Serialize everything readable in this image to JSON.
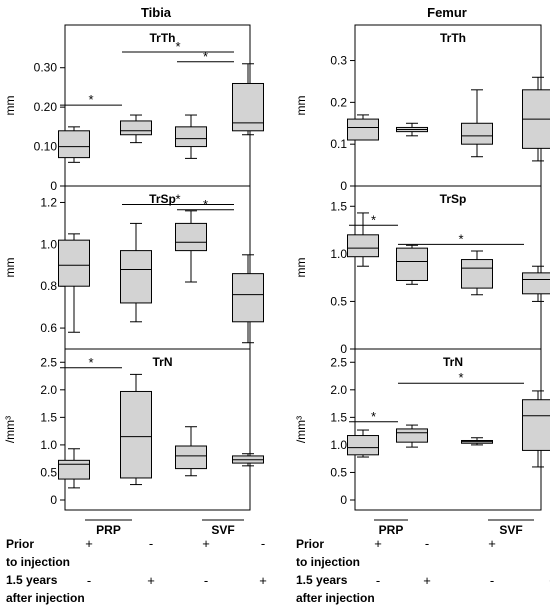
{
  "columns": [
    {
      "title": "Tibia"
    },
    {
      "title": "Femur"
    }
  ],
  "groups": [
    "PRP",
    "SVF"
  ],
  "rows": [
    {
      "label": "Prior\nto injection",
      "signs": [
        "+",
        "-",
        "+",
        "-"
      ]
    },
    {
      "label": "1.5 years\nafter injection",
      "signs": [
        "-",
        "+",
        "-",
        "+"
      ]
    }
  ],
  "chart_data": [
    {
      "type": "box",
      "column": "Tibia",
      "title": "TrTh",
      "ylabel": "mm",
      "ylim": [
        0,
        0.35
      ],
      "yticks": [
        "0",
        "0.10",
        "0.20",
        "0.30"
      ],
      "ytick_values": [
        0,
        0.1,
        0.2,
        0.3
      ],
      "boxes": [
        {
          "min": 0.06,
          "q1": 0.072,
          "median": 0.1,
          "q3": 0.14,
          "max": 0.15
        },
        {
          "min": 0.11,
          "q1": 0.13,
          "median": 0.14,
          "q3": 0.165,
          "max": 0.18
        },
        {
          "min": 0.07,
          "q1": 0.1,
          "median": 0.12,
          "q3": 0.15,
          "max": 0.18
        },
        {
          "min": 0.13,
          "q1": 0.14,
          "median": 0.16,
          "q3": 0.26,
          "max": 0.31
        }
      ],
      "significance": [
        {
          "from": 0,
          "to": 1,
          "label": "*",
          "y": 0.205
        },
        {
          "from": 1,
          "to": 3,
          "label": "*",
          "y": 0.34
        },
        {
          "from": 2,
          "to": 3,
          "label": "*",
          "y": 0.315
        }
      ]
    },
    {
      "type": "box",
      "column": "Tibia",
      "title": "TrSp",
      "ylabel": "mm",
      "ylim": [
        0.5,
        1.25
      ],
      "yticks": [
        "0.6",
        "0.8",
        "1.0",
        "1.2"
      ],
      "ytick_values": [
        0.6,
        0.8,
        1.0,
        1.2
      ],
      "boxes": [
        {
          "min": 0.58,
          "q1": 0.8,
          "median": 0.9,
          "q3": 1.02,
          "max": 1.05
        },
        {
          "min": 0.63,
          "q1": 0.72,
          "median": 0.88,
          "q3": 0.97,
          "max": 1.1
        },
        {
          "min": 0.82,
          "q1": 0.97,
          "median": 1.01,
          "q3": 1.1,
          "max": 1.16
        },
        {
          "min": 0.53,
          "q1": 0.63,
          "median": 0.76,
          "q3": 0.86,
          "max": 0.95
        }
      ],
      "significance": [
        {
          "from": 1,
          "to": 3,
          "label": "*",
          "y": 1.19
        },
        {
          "from": 2,
          "to": 3,
          "label": "*",
          "y": 1.165
        }
      ]
    },
    {
      "type": "box",
      "column": "Tibia",
      "title": "TrN",
      "ylabel": "/mm³",
      "ylim": [
        0,
        2.65
      ],
      "yticks": [
        "0",
        "0.5",
        "1.0",
        "1.5",
        "2.0",
        "2.5"
      ],
      "ytick_values": [
        0,
        0.5,
        1,
        1.5,
        2,
        2.5
      ],
      "boxes": [
        {
          "min": 0.22,
          "q1": 0.38,
          "median": 0.65,
          "q3": 0.72,
          "max": 0.93
        },
        {
          "min": 0.28,
          "q1": 0.4,
          "median": 1.15,
          "q3": 1.97,
          "max": 2.28
        },
        {
          "min": 0.44,
          "q1": 0.57,
          "median": 0.8,
          "q3": 0.98,
          "max": 1.33
        },
        {
          "min": 0.62,
          "q1": 0.67,
          "median": 0.73,
          "q3": 0.8,
          "max": 0.84
        }
      ],
      "significance": [
        {
          "from": 0,
          "to": 1,
          "label": "*",
          "y": 2.4
        }
      ]
    },
    {
      "type": "box",
      "column": "Femur",
      "title": "TrTh",
      "ylabel": "mm",
      "ylim": [
        0,
        0.33
      ],
      "yticks": [
        "0",
        "0.1",
        "0.2",
        "0.3"
      ],
      "ytick_values": [
        0,
        0.1,
        0.2,
        0.3
      ],
      "boxes": [
        {
          "min": 0.11,
          "q1": 0.11,
          "median": 0.14,
          "q3": 0.16,
          "max": 0.17
        },
        {
          "min": 0.12,
          "q1": 0.13,
          "median": 0.135,
          "q3": 0.14,
          "max": 0.15
        },
        {
          "min": 0.07,
          "q1": 0.1,
          "median": 0.12,
          "q3": 0.15,
          "max": 0.23
        },
        {
          "min": 0.06,
          "q1": 0.09,
          "median": 0.16,
          "q3": 0.23,
          "max": 0.26
        }
      ],
      "significance": []
    },
    {
      "type": "box",
      "column": "Femur",
      "title": "TrSp",
      "ylabel": "mm",
      "ylim": [
        0,
        1.65
      ],
      "yticks": [
        "0",
        "0.5",
        "1.0",
        "1.5"
      ],
      "ytick_values": [
        0,
        0.5,
        1,
        1.5
      ],
      "boxes": [
        {
          "min": 0.87,
          "q1": 0.97,
          "median": 1.06,
          "q3": 1.2,
          "max": 1.43
        },
        {
          "min": 0.68,
          "q1": 0.72,
          "median": 0.92,
          "q3": 1.06,
          "max": 1.09
        },
        {
          "min": 0.57,
          "q1": 0.64,
          "median": 0.85,
          "q3": 0.94,
          "max": 1.03
        },
        {
          "min": 0.5,
          "q1": 0.58,
          "median": 0.73,
          "q3": 0.8,
          "max": 0.87
        }
      ],
      "significance": [
        {
          "from": 0,
          "to": 1,
          "label": "*",
          "y": 1.3
        },
        {
          "from": 1,
          "to": 3,
          "label": "*",
          "y": 1.1
        }
      ]
    },
    {
      "type": "box",
      "column": "Femur",
      "title": "TrN",
      "ylabel": "/mm³",
      "ylim": [
        0,
        2.65
      ],
      "yticks": [
        "0",
        "0.5",
        "1.0",
        "1.5",
        "2.0",
        "2.5"
      ],
      "ytick_values": [
        0,
        0.5,
        1,
        1.5,
        2,
        2.5
      ],
      "boxes": [
        {
          "min": 0.78,
          "q1": 0.82,
          "median": 0.95,
          "q3": 1.17,
          "max": 1.27
        },
        {
          "min": 0.96,
          "q1": 1.05,
          "median": 1.22,
          "q3": 1.29,
          "max": 1.36
        },
        {
          "min": 1.0,
          "q1": 1.03,
          "median": 1.06,
          "q3": 1.08,
          "max": 1.13
        },
        {
          "min": 0.6,
          "q1": 0.9,
          "median": 1.53,
          "q3": 1.82,
          "max": 1.98
        }
      ],
      "significance": [
        {
          "from": 0,
          "to": 1,
          "label": "*",
          "y": 1.42
        },
        {
          "from": 1,
          "to": 3,
          "label": "*",
          "y": 2.12
        }
      ]
    }
  ],
  "colors": {
    "box_fill": "#d3d3d3",
    "stroke": "#000000"
  }
}
